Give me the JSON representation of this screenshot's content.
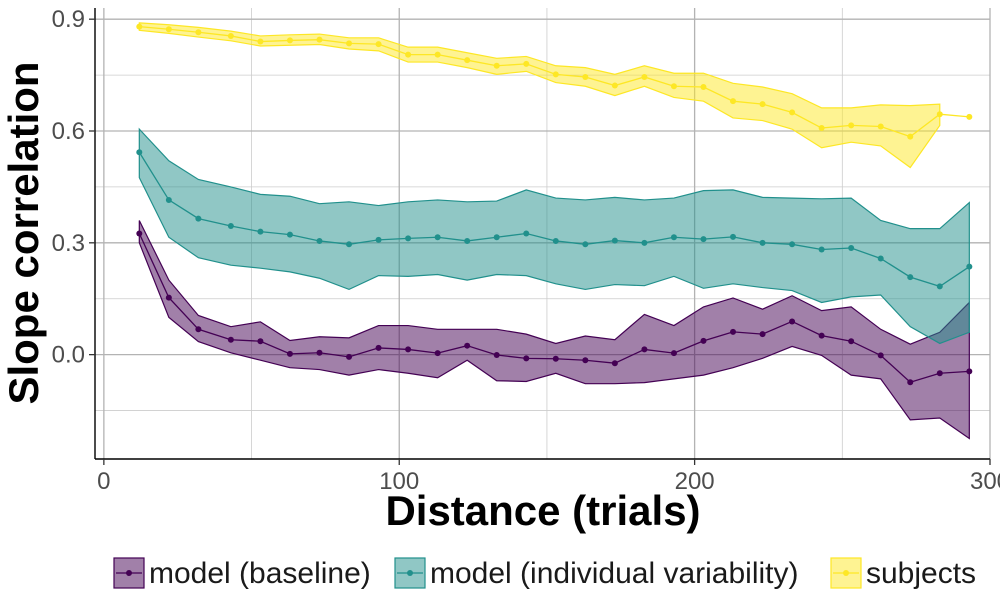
{
  "chart_data": {
    "type": "line",
    "title": "",
    "xlabel": "Distance (trials)",
    "ylabel": "Slope correlation",
    "xlim": [
      -3,
      300
    ],
    "ylim": [
      -0.28,
      0.93
    ],
    "x_ticks": [
      0,
      100,
      200,
      300
    ],
    "x_tick_labels": [
      "0",
      "100",
      "200",
      "300"
    ],
    "y_ticks": [
      0.0,
      0.3,
      0.6,
      0.9
    ],
    "y_tick_labels": [
      "0.0",
      "0.3",
      "0.6",
      "0.9"
    ],
    "grid": true,
    "legend": "bottom",
    "series": [
      {
        "name": "model (baseline)",
        "color": "#440154",
        "x": [
          12,
          22,
          32,
          43,
          53,
          63,
          73,
          83,
          93,
          103,
          113,
          123,
          133,
          143,
          153,
          163,
          173,
          183,
          193,
          203,
          213,
          223,
          233,
          243,
          253,
          263,
          273,
          283,
          293
        ],
        "y": [
          0.325,
          0.153,
          0.068,
          0.04,
          0.036,
          0.002,
          0.005,
          -0.006,
          0.018,
          0.014,
          0.004,
          0.024,
          -0.001,
          -0.01,
          -0.011,
          -0.015,
          -0.023,
          0.014,
          0.004,
          0.037,
          0.061,
          0.055,
          0.089,
          0.051,
          0.036,
          -0.002,
          -0.074,
          -0.05,
          -0.045
        ],
        "upper": [
          0.36,
          0.2,
          0.105,
          0.075,
          0.088,
          0.038,
          0.048,
          0.045,
          0.078,
          0.078,
          0.068,
          0.068,
          0.068,
          0.055,
          0.03,
          0.05,
          0.04,
          0.108,
          0.078,
          0.128,
          0.152,
          0.122,
          0.158,
          0.118,
          0.128,
          0.068,
          0.028,
          0.06,
          0.14
        ],
        "lower": [
          0.3,
          0.1,
          0.035,
          0.005,
          -0.015,
          -0.035,
          -0.04,
          -0.055,
          -0.04,
          -0.05,
          -0.062,
          -0.015,
          -0.07,
          -0.072,
          -0.05,
          -0.078,
          -0.078,
          -0.075,
          -0.065,
          -0.055,
          -0.035,
          -0.01,
          0.022,
          -0.002,
          -0.055,
          -0.065,
          -0.175,
          -0.17,
          -0.225
        ]
      },
      {
        "name": "model (individual variability)",
        "color": "#21908C",
        "x": [
          12,
          22,
          32,
          43,
          53,
          63,
          73,
          83,
          93,
          103,
          113,
          123,
          133,
          143,
          153,
          163,
          173,
          183,
          193,
          203,
          213,
          223,
          233,
          243,
          253,
          263,
          273,
          283,
          293
        ],
        "y": [
          0.543,
          0.415,
          0.365,
          0.345,
          0.33,
          0.322,
          0.305,
          0.296,
          0.308,
          0.312,
          0.315,
          0.305,
          0.315,
          0.325,
          0.305,
          0.296,
          0.306,
          0.3,
          0.315,
          0.31,
          0.316,
          0.3,
          0.296,
          0.282,
          0.286,
          0.258,
          0.208,
          0.183,
          0.236
        ],
        "upper": [
          0.605,
          0.52,
          0.47,
          0.45,
          0.43,
          0.425,
          0.405,
          0.41,
          0.4,
          0.41,
          0.415,
          0.41,
          0.412,
          0.442,
          0.42,
          0.415,
          0.422,
          0.415,
          0.42,
          0.44,
          0.442,
          0.422,
          0.42,
          0.418,
          0.42,
          0.36,
          0.338,
          0.338,
          0.408
        ],
        "lower": [
          0.475,
          0.315,
          0.26,
          0.24,
          0.232,
          0.222,
          0.205,
          0.175,
          0.212,
          0.21,
          0.215,
          0.2,
          0.215,
          0.212,
          0.19,
          0.175,
          0.188,
          0.185,
          0.21,
          0.178,
          0.19,
          0.18,
          0.172,
          0.14,
          0.155,
          0.16,
          0.075,
          0.03,
          0.06
        ]
      },
      {
        "name": "subjects",
        "color": "#FDE725",
        "x": [
          12,
          22,
          32,
          43,
          53,
          63,
          73,
          83,
          93,
          103,
          113,
          123,
          133,
          143,
          153,
          163,
          173,
          183,
          193,
          203,
          213,
          223,
          233,
          243,
          253,
          263,
          273,
          283,
          293
        ],
        "y": [
          0.88,
          0.873,
          0.865,
          0.855,
          0.84,
          0.843,
          0.845,
          0.835,
          0.833,
          0.805,
          0.805,
          0.79,
          0.775,
          0.78,
          0.752,
          0.745,
          0.722,
          0.745,
          0.72,
          0.718,
          0.68,
          0.672,
          0.65,
          0.608,
          0.615,
          0.612,
          0.585,
          0.645,
          0.638
        ],
        "upper": [
          0.89,
          0.885,
          0.878,
          0.868,
          0.855,
          0.858,
          0.86,
          0.85,
          0.85,
          0.825,
          0.825,
          0.81,
          0.795,
          0.8,
          0.775,
          0.77,
          0.752,
          0.775,
          0.755,
          0.755,
          0.728,
          0.718,
          0.7,
          0.662,
          0.662,
          0.67,
          0.668,
          0.672,
          null
        ],
        "lower": [
          0.87,
          0.862,
          0.852,
          0.842,
          0.828,
          0.83,
          0.832,
          0.82,
          0.815,
          0.785,
          0.785,
          0.77,
          0.752,
          0.76,
          0.73,
          0.72,
          0.695,
          0.72,
          0.69,
          0.68,
          0.635,
          0.628,
          0.605,
          0.555,
          0.57,
          0.56,
          0.502,
          0.615,
          null
        ]
      }
    ]
  }
}
